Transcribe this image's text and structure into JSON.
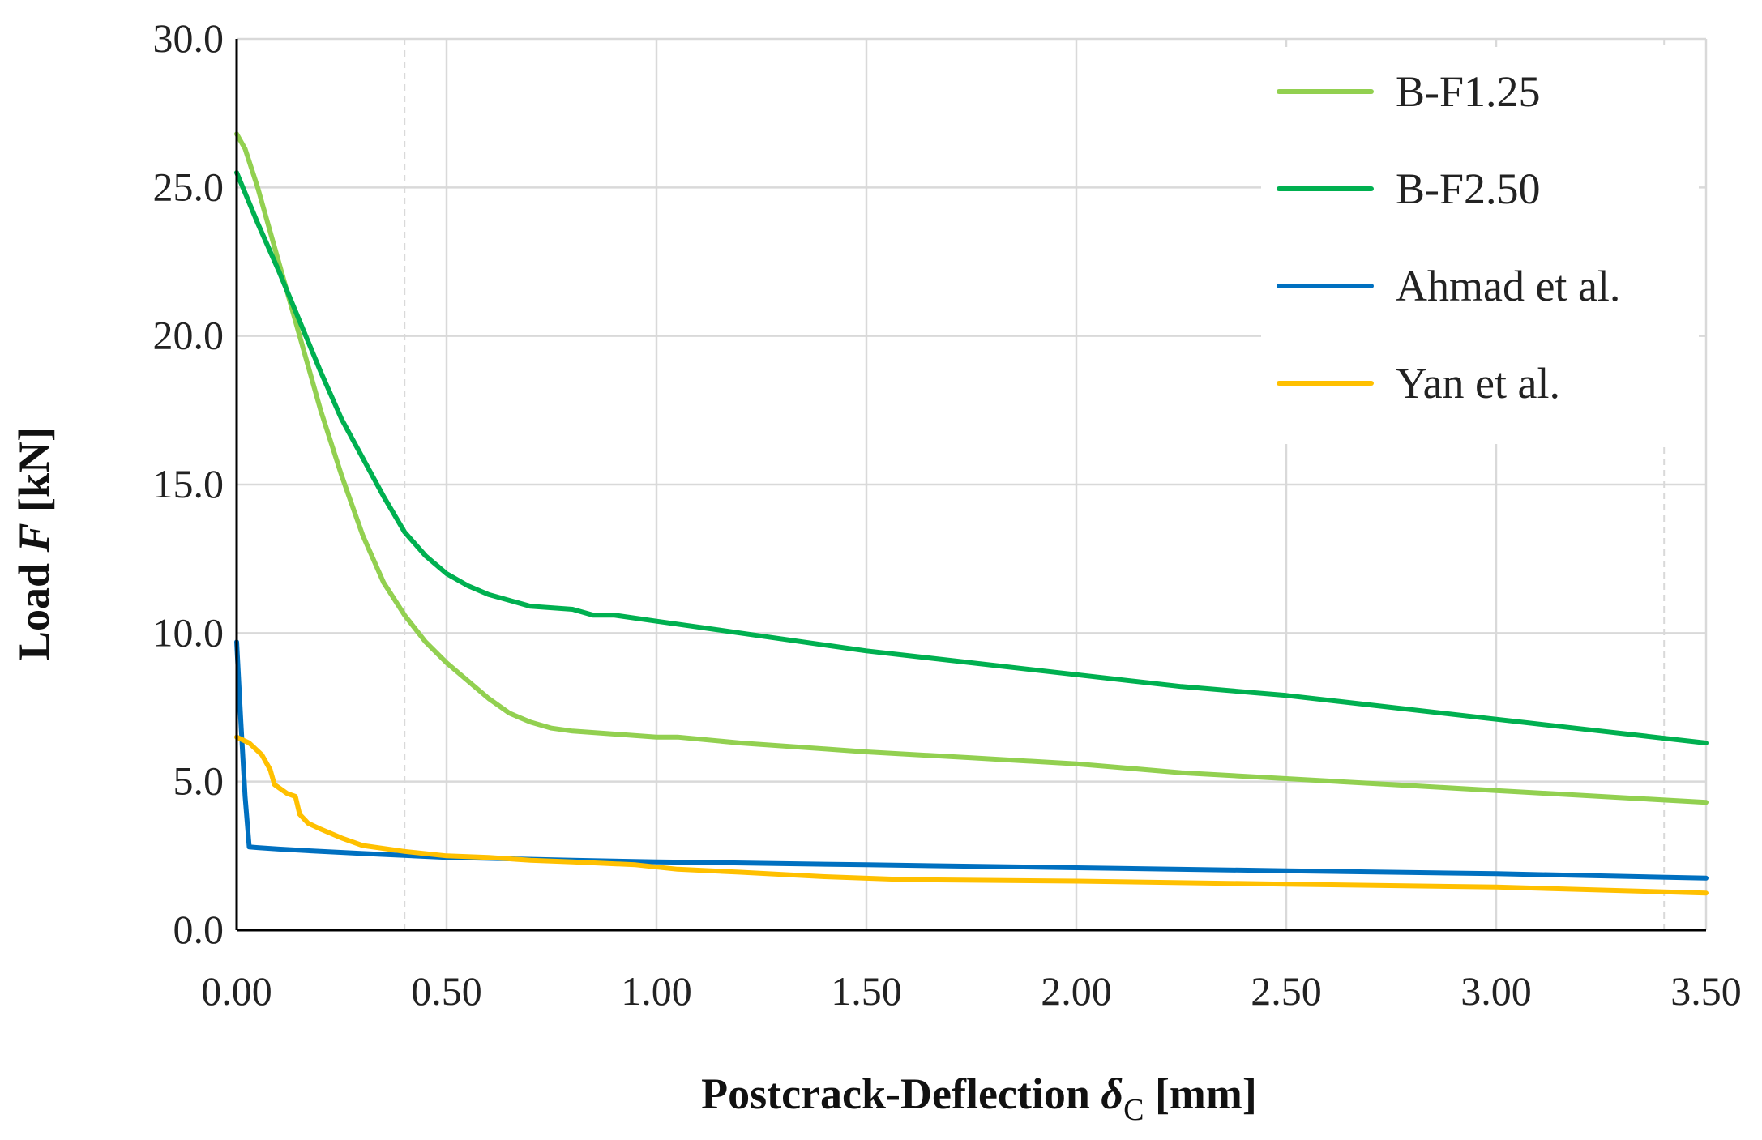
{
  "chart_data": {
    "type": "line",
    "title": "",
    "xlabel": "Postcrack-Deflection",
    "xlabel_symbol": "δ",
    "xlabel_subscript": "C",
    "xlabel_unit": "[mm]",
    "ylabel": "Load",
    "ylabel_symbol": "F",
    "ylabel_unit": "[kN]",
    "xlim": [
      0,
      3.5
    ],
    "ylim": [
      0,
      30
    ],
    "x_ticks": [
      "0.00",
      "0.50",
      "1.00",
      "1.50",
      "2.00",
      "2.50",
      "3.00",
      "3.50"
    ],
    "x_tick_values": [
      0,
      0.5,
      1.0,
      1.5,
      2.0,
      2.5,
      3.0,
      3.5
    ],
    "y_ticks": [
      "0.0",
      "5.0",
      "10.0",
      "15.0",
      "20.0",
      "25.0",
      "30.0"
    ],
    "y_tick_values": [
      0,
      5,
      10,
      15,
      20,
      25,
      30
    ],
    "extra_dashed_gridlines_x": [
      0.4,
      3.4
    ],
    "grid": true,
    "legend_position": "top-right",
    "series": [
      {
        "name": "B-F1.25",
        "color": "#92d050",
        "x": [
          0.0,
          0.02,
          0.05,
          0.1,
          0.15,
          0.2,
          0.25,
          0.3,
          0.35,
          0.4,
          0.45,
          0.5,
          0.55,
          0.6,
          0.65,
          0.7,
          0.75,
          0.8,
          0.9,
          1.0,
          1.05,
          1.2,
          1.4,
          1.5,
          1.75,
          2.0,
          2.25,
          2.5,
          2.75,
          3.0,
          3.25,
          3.5
        ],
        "y": [
          26.8,
          26.3,
          25.0,
          22.5,
          20.0,
          17.5,
          15.3,
          13.3,
          11.7,
          10.6,
          9.7,
          9.0,
          8.4,
          7.8,
          7.3,
          7.0,
          6.8,
          6.7,
          6.6,
          6.5,
          6.5,
          6.3,
          6.1,
          6.0,
          5.8,
          5.6,
          5.3,
          5.1,
          4.9,
          4.7,
          4.5,
          4.3
        ]
      },
      {
        "name": "B-F2.50",
        "color": "#00b050",
        "x": [
          0.0,
          0.05,
          0.1,
          0.15,
          0.2,
          0.25,
          0.3,
          0.35,
          0.4,
          0.45,
          0.5,
          0.55,
          0.6,
          0.7,
          0.8,
          0.85,
          0.9,
          1.0,
          1.05,
          1.2,
          1.4,
          1.5,
          1.75,
          2.0,
          2.25,
          2.5,
          2.75,
          3.0,
          3.25,
          3.5
        ],
        "y": [
          25.5,
          23.8,
          22.2,
          20.5,
          18.8,
          17.2,
          15.9,
          14.6,
          13.4,
          12.6,
          12.0,
          11.6,
          11.3,
          10.9,
          10.8,
          10.6,
          10.6,
          10.4,
          10.3,
          10.0,
          9.6,
          9.4,
          9.0,
          8.6,
          8.2,
          7.9,
          7.5,
          7.1,
          6.7,
          6.3
        ]
      },
      {
        "name": "Ahmad et al.",
        "color": "#0070c0",
        "x": [
          0.0,
          0.01,
          0.02,
          0.03,
          0.05,
          0.1,
          0.2,
          0.3,
          0.5,
          0.8,
          1.0,
          1.5,
          2.0,
          2.5,
          3.0,
          3.5
        ],
        "y": [
          9.7,
          7.0,
          4.5,
          2.8,
          2.78,
          2.73,
          2.65,
          2.58,
          2.45,
          2.35,
          2.3,
          2.2,
          2.1,
          2.0,
          1.9,
          1.75
        ]
      },
      {
        "name": "Yan et al.",
        "color": "#ffc000",
        "x": [
          0.0,
          0.03,
          0.06,
          0.08,
          0.09,
          0.1,
          0.12,
          0.14,
          0.15,
          0.17,
          0.2,
          0.25,
          0.3,
          0.4,
          0.5,
          0.6,
          0.7,
          0.8,
          0.95,
          1.05,
          1.2,
          1.4,
          1.6,
          2.0,
          2.5,
          3.0,
          3.5
        ],
        "y": [
          6.5,
          6.3,
          5.9,
          5.4,
          4.9,
          4.8,
          4.6,
          4.5,
          3.9,
          3.6,
          3.4,
          3.1,
          2.85,
          2.65,
          2.5,
          2.45,
          2.35,
          2.3,
          2.2,
          2.05,
          1.95,
          1.8,
          1.7,
          1.65,
          1.55,
          1.45,
          1.25
        ]
      }
    ]
  }
}
